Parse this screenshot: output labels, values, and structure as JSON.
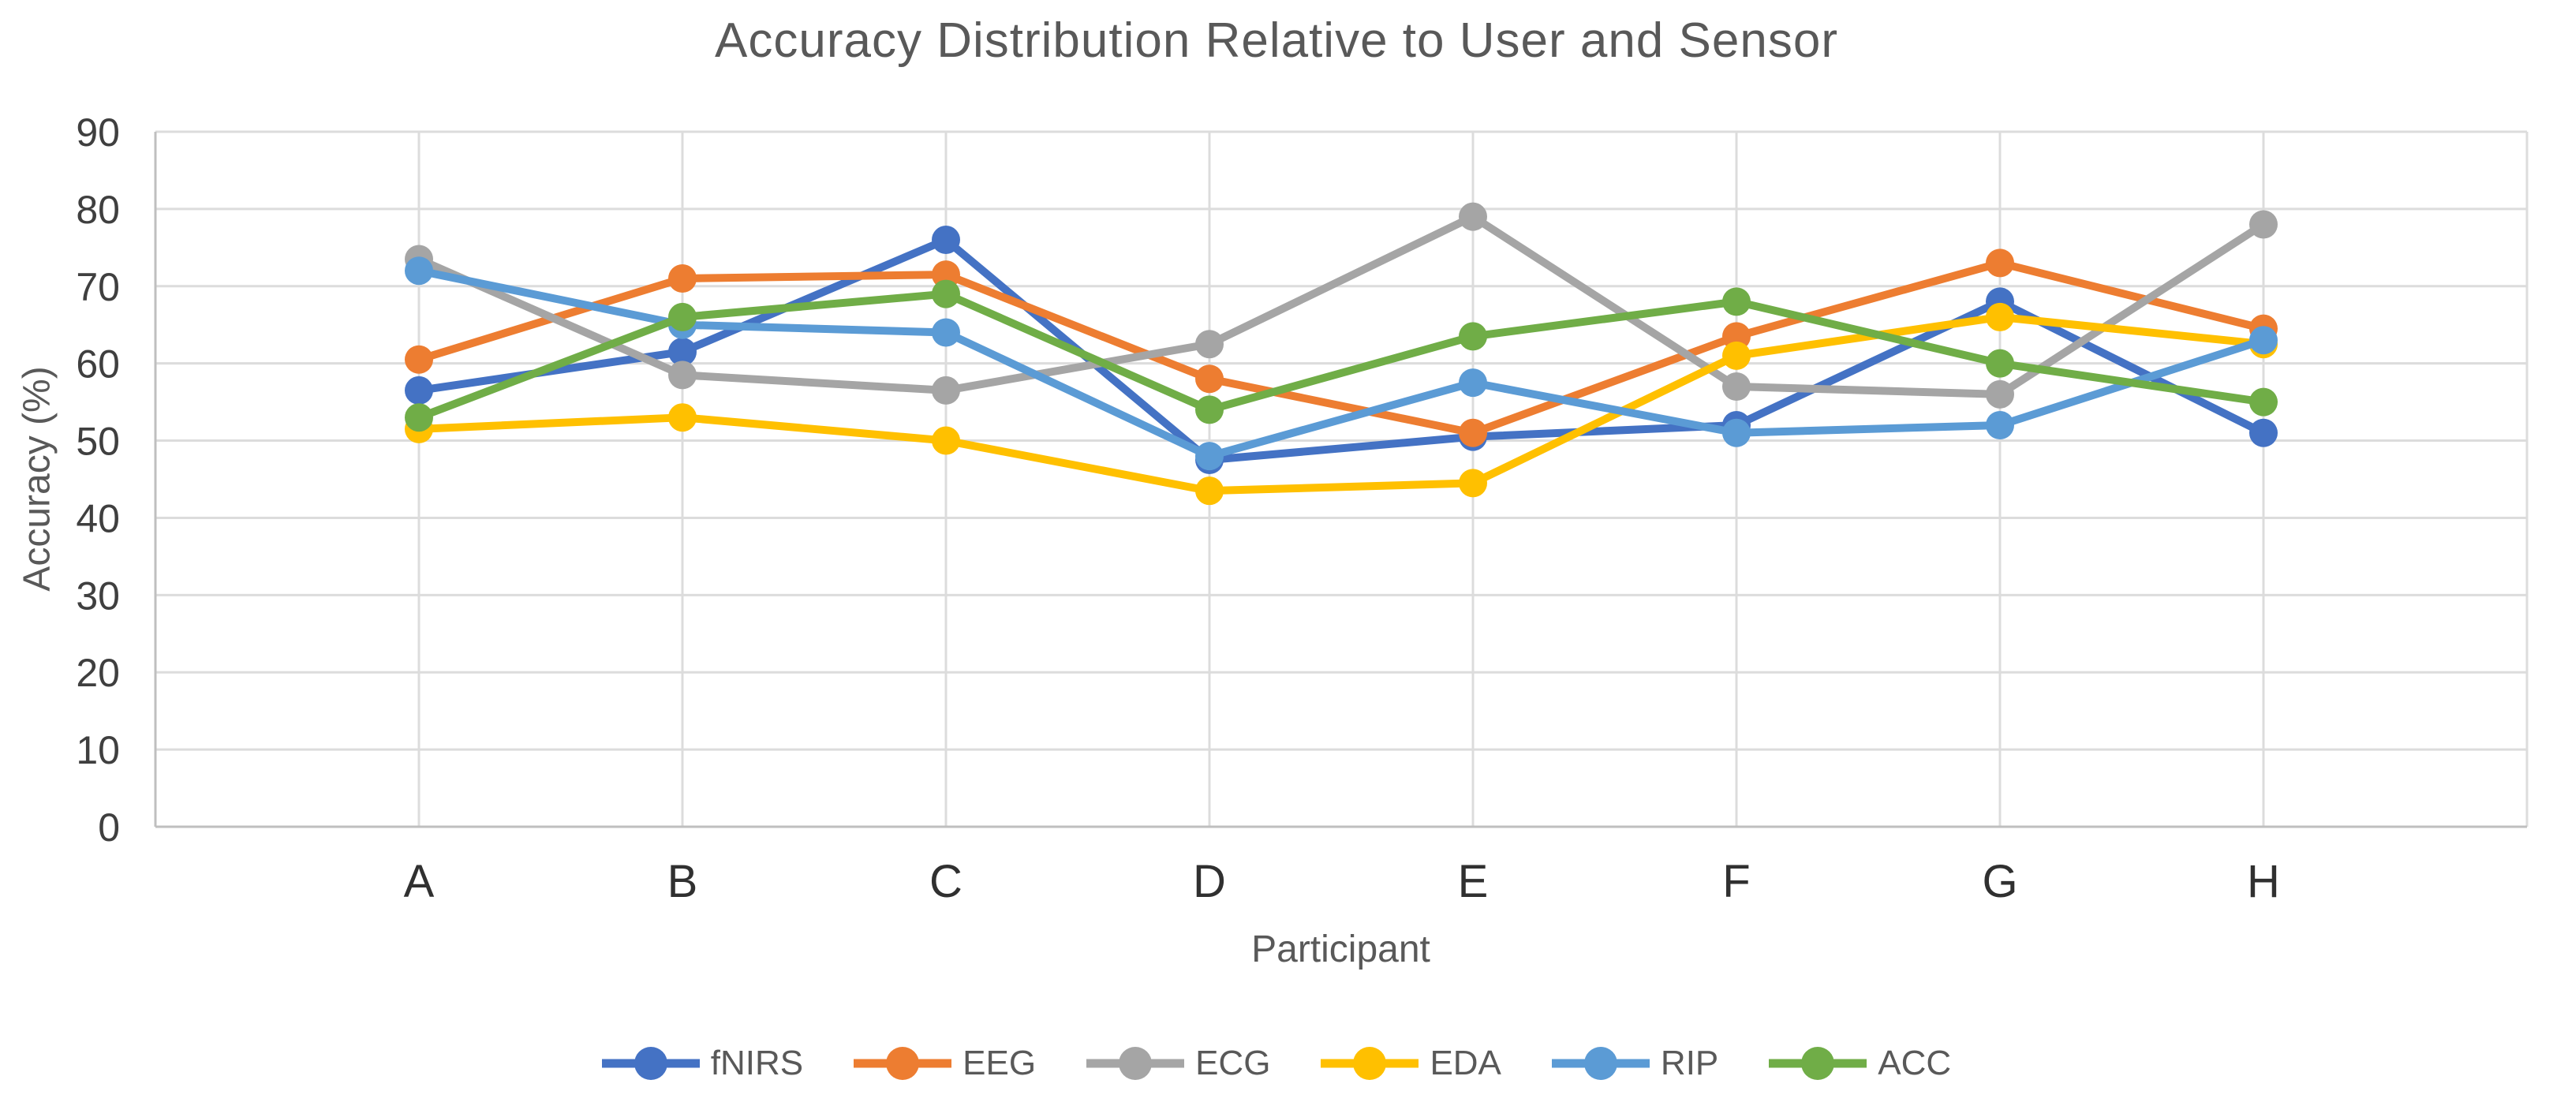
{
  "chart_data": {
    "type": "line",
    "title": "Accuracy Distribution Relative to User and Sensor",
    "xlabel": "Participant",
    "ylabel": "Accuracy (%)",
    "categories": [
      "A",
      "B",
      "C",
      "D",
      "E",
      "F",
      "G",
      "H"
    ],
    "series": [
      {
        "name": "fNIRS",
        "color": "#4472C4",
        "values": [
          56.5,
          61.5,
          76,
          47.5,
          50.5,
          52,
          68,
          51
        ]
      },
      {
        "name": "EEG",
        "color": "#ED7D31",
        "values": [
          60.5,
          71,
          71.5,
          58,
          51,
          63.5,
          73,
          64.5
        ]
      },
      {
        "name": "ECG",
        "color": "#A5A5A5",
        "values": [
          73.5,
          58.5,
          56.5,
          62.5,
          79,
          57,
          56,
          78
        ]
      },
      {
        "name": "EDA",
        "color": "#FFC000",
        "values": [
          51.5,
          53,
          50,
          43.5,
          44.5,
          61,
          66,
          62.5
        ]
      },
      {
        "name": "RIP",
        "color": "#5B9BD5",
        "values": [
          72,
          65,
          64,
          48,
          57.5,
          51,
          52,
          63
        ]
      },
      {
        "name": "ACC",
        "color": "#70AD47",
        "values": [
          53,
          66,
          69,
          54,
          63.5,
          68,
          60,
          55
        ]
      }
    ],
    "ylim": [
      0,
      90
    ],
    "yticks": [
      0,
      10,
      20,
      30,
      40,
      50,
      60,
      70,
      80,
      90
    ],
    "grid": true,
    "legend_position": "bottom",
    "style": {
      "grid_color": "#DCDCDC",
      "axis_color": "#BFBFBF",
      "title_color": "#595959",
      "tick_color": "#3F3F3F",
      "line_width": 10,
      "marker_radius": 18
    }
  }
}
